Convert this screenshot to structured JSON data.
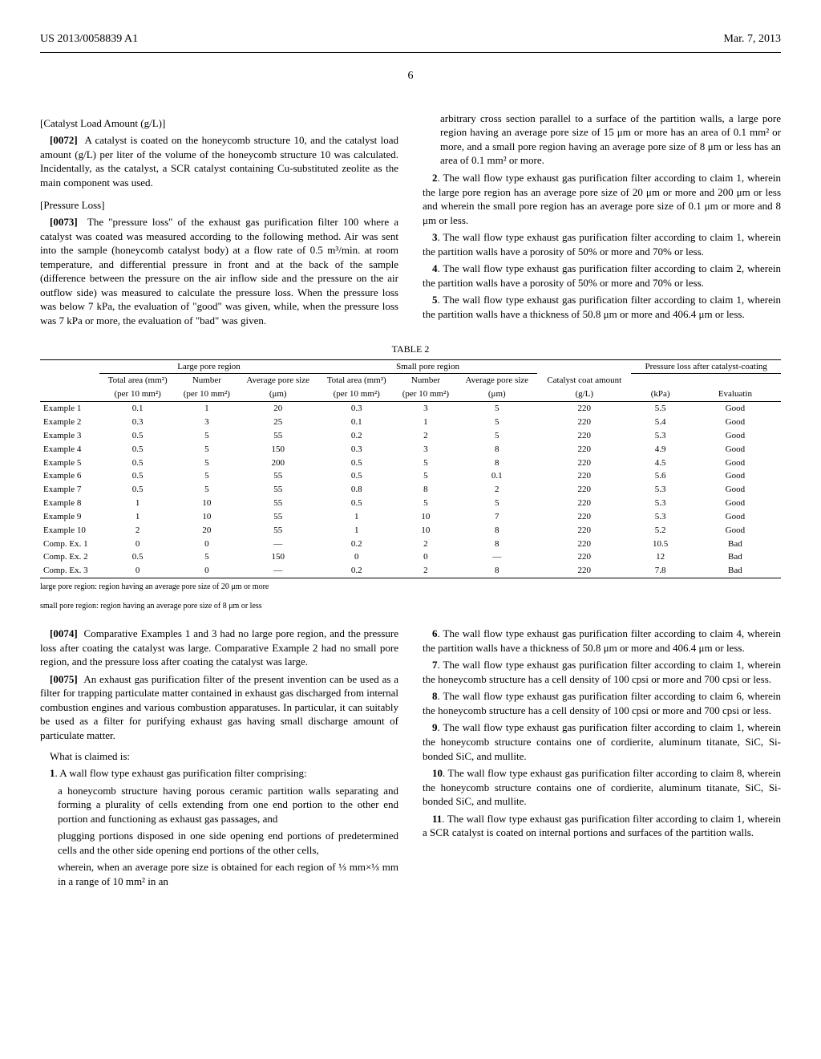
{
  "header": {
    "patent_no": "US 2013/0058839 A1",
    "date": "Mar. 7, 2013"
  },
  "page_number": "6",
  "left_col": {
    "catalyst_title": "[Catalyst Load Amount (g/L)]",
    "para72_num": "[0072]",
    "para72": "A catalyst is coated on the honeycomb structure 10, and the catalyst load amount (g/L) per liter of the volume of the honeycomb structure 10 was calculated. Incidentally, as the catalyst, a SCR catalyst containing Cu-substituted zeolite as the main component was used.",
    "pressure_title": "[Pressure Loss]",
    "para73_num": "[0073]",
    "para73": "The \"pressure loss\" of the exhaust gas purification filter 100 where a catalyst was coated was measured according to the following method. Air was sent into the sample (honeycomb catalyst body) at a flow rate of 0.5 m³/min. at room temperature, and differential pressure in front and at the back of the sample (difference between the pressure on the air inflow side and the pressure on the air outflow side) was measured to calculate the pressure loss. When the pressure loss was below 7 kPa, the evaluation of \"good\" was given, while, when the pressure loss was 7 kPa or more, the evaluation of \"bad\" was given.",
    "para74_num": "[0074]",
    "para74": "Comparative Examples 1 and 3 had no large pore region, and the pressure loss after coating the catalyst was large. Comparative Example 2 had no small pore region, and the pressure loss after coating the catalyst was large.",
    "para75_num": "[0075]",
    "para75": "An exhaust gas purification filter of the present invention can be used as a filter for trapping particulate matter contained in exhaust gas discharged from internal combustion engines and various combustion apparatuses. In particular, it can suitably be used as a filter for purifying exhaust gas having small discharge amount of particulate matter.",
    "claims_intro": "What is claimed is:",
    "claim1_num": "1",
    "claim1": ". A wall flow type exhaust gas purification filter comprising:",
    "claim1_a": "a honeycomb structure having porous ceramic partition walls separating and forming a plurality of cells extending from one end portion to the other end portion and functioning as exhaust gas passages, and",
    "claim1_b": "plugging portions disposed in one side opening end portions of predetermined cells and the other side opening end portions of the other cells,",
    "claim1_c": "wherein, when an average pore size is obtained for each region of ⅓ mm×⅓ mm in a range of 10 mm² in an"
  },
  "right_col": {
    "claim1_cont": "arbitrary cross section parallel to a surface of the partition walls, a large pore region having an average pore size of 15 μm or more has an area of 0.1 mm² or more, and a small pore region having an average pore size of 8 μm or less has an area of 0.1 mm² or more.",
    "claim2_num": "2",
    "claim2": ". The wall flow type exhaust gas purification filter according to claim 1, wherein the large pore region has an average pore size of 20 μm or more and 200 μm or less and wherein the small pore region has an average pore size of 0.1 μm or more and 8 μm or less.",
    "claim3_num": "3",
    "claim3": ". The wall flow type exhaust gas purification filter according to claim 1, wherein the partition walls have a porosity of 50% or more and 70% or less.",
    "claim4_num": "4",
    "claim4": ". The wall flow type exhaust gas purification filter according to claim 2, wherein the partition walls have a porosity of 50% or more and 70% or less.",
    "claim5_num": "5",
    "claim5": ". The wall flow type exhaust gas purification filter according to claim 1, wherein the partition walls have a thickness of 50.8 μm or more and 406.4 μm or less.",
    "claim6_num": "6",
    "claim6": ". The wall flow type exhaust gas purification filter according to claim 4, wherein the partition walls have a thickness of 50.8 μm or more and 406.4 μm or less.",
    "claim7_num": "7",
    "claim7": ". The wall flow type exhaust gas purification filter according to claim 1, wherein the honeycomb structure has a cell density of 100 cpsi or more and 700 cpsi or less.",
    "claim8_num": "8",
    "claim8": ". The wall flow type exhaust gas purification filter according to claim 6, wherein the honeycomb structure has a cell density of 100 cpsi or more and 700 cpsi or less.",
    "claim9_num": "9",
    "claim9": ". The wall flow type exhaust gas purification filter according to claim 1, wherein the honeycomb structure contains one of cordierite, aluminum titanate, SiC, Si-bonded SiC, and mullite.",
    "claim10_num": "10",
    "claim10": ". The wall flow type exhaust gas purification filter according to claim 8, wherein the honeycomb structure contains one of cordierite, aluminum titanate, SiC, Si-bonded SiC, and mullite.",
    "claim11_num": "11",
    "claim11": ". The wall flow type exhaust gas purification filter according to claim 1, wherein a SCR catalyst is coated on internal portions and surfaces of the partition walls."
  },
  "table": {
    "caption": "TABLE 2",
    "group1": "Large pore region",
    "group2": "Small pore region",
    "group3": "Pressure loss after catalyst-coating",
    "h_total_area": "Total area (mm²)",
    "h_number": "Number",
    "h_avg_pore": "Average pore size",
    "h_avg_pore2": "Average pore size",
    "h_catalyst": "Catalyst coat amount",
    "u_per10": "(per 10 mm²)",
    "u_um": "(μm)",
    "u_gl": "(g/L)",
    "u_kpa": "(kPa)",
    "u_eval": "Evaluatin",
    "rows": [
      {
        "label": "Example 1",
        "la": "0.1",
        "ln": "1",
        "lp": "20",
        "sa": "0.3",
        "sn": "3",
        "sp": "5",
        "cc": "220",
        "kpa": "5.5",
        "ev": "Good"
      },
      {
        "label": "Example 2",
        "la": "0.3",
        "ln": "3",
        "lp": "25",
        "sa": "0.1",
        "sn": "1",
        "sp": "5",
        "cc": "220",
        "kpa": "5.4",
        "ev": "Good"
      },
      {
        "label": "Example 3",
        "la": "0.5",
        "ln": "5",
        "lp": "55",
        "sa": "0.2",
        "sn": "2",
        "sp": "5",
        "cc": "220",
        "kpa": "5.3",
        "ev": "Good"
      },
      {
        "label": "Example 4",
        "la": "0.5",
        "ln": "5",
        "lp": "150",
        "sa": "0.3",
        "sn": "3",
        "sp": "8",
        "cc": "220",
        "kpa": "4.9",
        "ev": "Good"
      },
      {
        "label": "Example 5",
        "la": "0.5",
        "ln": "5",
        "lp": "200",
        "sa": "0.5",
        "sn": "5",
        "sp": "8",
        "cc": "220",
        "kpa": "4.5",
        "ev": "Good"
      },
      {
        "label": "Example 6",
        "la": "0.5",
        "ln": "5",
        "lp": "55",
        "sa": "0.5",
        "sn": "5",
        "sp": "0.1",
        "cc": "220",
        "kpa": "5.6",
        "ev": "Good"
      },
      {
        "label": "Example 7",
        "la": "0.5",
        "ln": "5",
        "lp": "55",
        "sa": "0.8",
        "sn": "8",
        "sp": "2",
        "cc": "220",
        "kpa": "5.3",
        "ev": "Good"
      },
      {
        "label": "Example 8",
        "la": "1",
        "ln": "10",
        "lp": "55",
        "sa": "0.5",
        "sn": "5",
        "sp": "5",
        "cc": "220",
        "kpa": "5.3",
        "ev": "Good"
      },
      {
        "label": "Example 9",
        "la": "1",
        "ln": "10",
        "lp": "55",
        "sa": "1",
        "sn": "10",
        "sp": "7",
        "cc": "220",
        "kpa": "5.3",
        "ev": "Good"
      },
      {
        "label": "Example 10",
        "la": "2",
        "ln": "20",
        "lp": "55",
        "sa": "1",
        "sn": "10",
        "sp": "8",
        "cc": "220",
        "kpa": "5.2",
        "ev": "Good"
      },
      {
        "label": "Comp. Ex. 1",
        "la": "0",
        "ln": "0",
        "lp": "—",
        "sa": "0.2",
        "sn": "2",
        "sp": "8",
        "cc": "220",
        "kpa": "10.5",
        "ev": "Bad"
      },
      {
        "label": "Comp. Ex. 2",
        "la": "0.5",
        "ln": "5",
        "lp": "150",
        "sa": "0",
        "sn": "0",
        "sp": "—",
        "cc": "220",
        "kpa": "12",
        "ev": "Bad"
      },
      {
        "label": "Comp. Ex. 3",
        "la": "0",
        "ln": "0",
        "lp": "—",
        "sa": "0.2",
        "sn": "2",
        "sp": "8",
        "cc": "220",
        "kpa": "7.8",
        "ev": "Bad"
      }
    ],
    "footnote1": "large pore region: region having an average pore size of 20 μm or more",
    "footnote2": "small pore region: region having an average pore size of 8 μm or less"
  }
}
